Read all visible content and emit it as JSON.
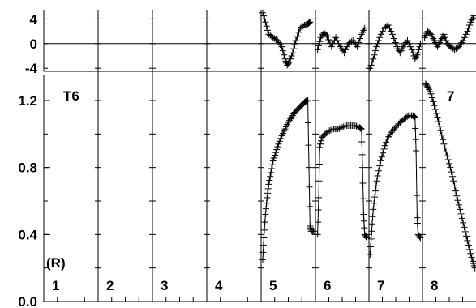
{
  "chart_data": {
    "type": "line",
    "title": "",
    "top_panel": {
      "ylabel": "",
      "ylim": [
        -4.5,
        5.5
      ],
      "y_ticks": [
        4,
        0,
        -4
      ],
      "y_tick_labels": [
        "4",
        "0",
        "-4"
      ],
      "zero_line": true
    },
    "main_panel": {
      "ylabel": "",
      "ylim": [
        0.0,
        1.35
      ],
      "y_ticks": [
        1.2,
        0.8,
        0.4,
        0.0
      ],
      "y_tick_labels": [
        "1.2",
        "0.8",
        "0.4",
        "0.0"
      ],
      "label_top_left": "T6",
      "label_top_right": "7",
      "label_bottom_left": "(R)"
    },
    "subpanel_labels": [
      "1",
      "2",
      "3",
      "4",
      "5",
      "6",
      "7",
      "8"
    ],
    "series": [
      {
        "panel": 5,
        "points": [
          [
            0.03,
            0.25
          ],
          [
            0.05,
            0.38
          ],
          [
            0.08,
            0.52
          ],
          [
            0.11,
            0.62
          ],
          [
            0.14,
            0.7
          ],
          [
            0.18,
            0.77
          ],
          [
            0.22,
            0.84
          ],
          [
            0.27,
            0.89
          ],
          [
            0.32,
            0.94
          ],
          [
            0.38,
            0.99
          ],
          [
            0.44,
            1.03
          ],
          [
            0.5,
            1.07
          ],
          [
            0.56,
            1.1
          ],
          [
            0.62,
            1.13
          ],
          [
            0.68,
            1.15
          ],
          [
            0.74,
            1.17
          ],
          [
            0.8,
            1.19
          ],
          [
            0.84,
            1.2
          ],
          [
            0.86,
            1.2
          ],
          [
            0.88,
            0.8
          ],
          [
            0.9,
            0.45
          ],
          [
            0.92,
            0.42
          ],
          [
            0.97,
            0.42
          ]
        ],
        "residuals": [
          [
            0.03,
            5.0
          ],
          [
            0.08,
            3.5
          ],
          [
            0.14,
            1.5
          ],
          [
            0.22,
            1.0
          ],
          [
            0.3,
            0.5
          ],
          [
            0.38,
            -0.5
          ],
          [
            0.44,
            -2.5
          ],
          [
            0.48,
            -3.5
          ],
          [
            0.52,
            -3.0
          ],
          [
            0.58,
            -1.5
          ],
          [
            0.64,
            0.5
          ],
          [
            0.72,
            2.5
          ],
          [
            0.8,
            3.0
          ],
          [
            0.86,
            3.2
          ],
          [
            0.9,
            3.5
          ]
        ]
      },
      {
        "panel": 6,
        "points": [
          [
            0.04,
            0.4
          ],
          [
            0.06,
            0.62
          ],
          [
            0.08,
            0.92
          ],
          [
            0.12,
            0.98
          ],
          [
            0.18,
            1.0
          ],
          [
            0.26,
            1.02
          ],
          [
            0.34,
            1.03
          ],
          [
            0.42,
            1.03
          ],
          [
            0.5,
            1.04
          ],
          [
            0.58,
            1.05
          ],
          [
            0.66,
            1.05
          ],
          [
            0.74,
            1.05
          ],
          [
            0.82,
            1.04
          ],
          [
            0.86,
            1.03
          ],
          [
            0.88,
            0.8
          ],
          [
            0.9,
            0.52
          ],
          [
            0.92,
            0.4
          ],
          [
            0.96,
            0.38
          ]
        ],
        "residuals": [
          [
            0.04,
            -1.0
          ],
          [
            0.1,
            1.0
          ],
          [
            0.16,
            1.8
          ],
          [
            0.22,
            1.2
          ],
          [
            0.3,
            -0.5
          ],
          [
            0.38,
            1.0
          ],
          [
            0.46,
            -0.5
          ],
          [
            0.54,
            -1.5
          ],
          [
            0.62,
            0.0
          ],
          [
            0.7,
            0.5
          ],
          [
            0.78,
            -0.5
          ],
          [
            0.86,
            1.5
          ],
          [
            0.92,
            2.5
          ]
        ]
      },
      {
        "panel": 7,
        "points": [
          [
            0.02,
            0.28
          ],
          [
            0.05,
            0.42
          ],
          [
            0.08,
            0.55
          ],
          [
            0.12,
            0.66
          ],
          [
            0.16,
            0.75
          ],
          [
            0.22,
            0.84
          ],
          [
            0.28,
            0.91
          ],
          [
            0.34,
            0.97
          ],
          [
            0.42,
            1.01
          ],
          [
            0.5,
            1.04
          ],
          [
            0.58,
            1.07
          ],
          [
            0.66,
            1.09
          ],
          [
            0.74,
            1.11
          ],
          [
            0.82,
            1.11
          ],
          [
            0.86,
            1.1
          ],
          [
            0.88,
            0.9
          ],
          [
            0.9,
            0.5
          ],
          [
            0.92,
            0.4
          ],
          [
            0.96,
            0.38
          ]
        ],
        "residuals": [
          [
            0.02,
            -4.0
          ],
          [
            0.08,
            -2.5
          ],
          [
            0.14,
            -0.5
          ],
          [
            0.2,
            1.0
          ],
          [
            0.28,
            2.5
          ],
          [
            0.36,
            3.0
          ],
          [
            0.44,
            1.5
          ],
          [
            0.52,
            -0.5
          ],
          [
            0.58,
            -1.5
          ],
          [
            0.64,
            -0.5
          ],
          [
            0.72,
            0.5
          ],
          [
            0.8,
            -1.0
          ],
          [
            0.86,
            -2.5
          ],
          [
            0.92,
            -1.5
          ],
          [
            0.96,
            0.0
          ]
        ]
      },
      {
        "panel": 8,
        "points": [
          [
            0.06,
            1.3
          ],
          [
            0.1,
            1.28
          ],
          [
            0.16,
            1.24
          ],
          [
            0.22,
            1.17
          ],
          [
            0.28,
            1.1
          ],
          [
            0.34,
            1.02
          ],
          [
            0.4,
            0.94
          ],
          [
            0.46,
            0.87
          ],
          [
            0.52,
            0.8
          ],
          [
            0.58,
            0.72
          ],
          [
            0.64,
            0.63
          ],
          [
            0.7,
            0.55
          ],
          [
            0.76,
            0.47
          ],
          [
            0.82,
            0.39
          ],
          [
            0.88,
            0.31
          ],
          [
            0.94,
            0.24
          ],
          [
            0.98,
            0.2
          ]
        ],
        "residuals": [
          [
            0.04,
            1.0
          ],
          [
            0.1,
            2.0
          ],
          [
            0.16,
            1.5
          ],
          [
            0.22,
            0.5
          ],
          [
            0.28,
            -0.5
          ],
          [
            0.34,
            0.5
          ],
          [
            0.4,
            1.5
          ],
          [
            0.46,
            0.0
          ],
          [
            0.52,
            -0.5
          ],
          [
            0.6,
            -1.0
          ],
          [
            0.68,
            -0.5
          ],
          [
            0.76,
            0.5
          ],
          [
            0.84,
            2.0
          ],
          [
            0.9,
            3.5
          ],
          [
            0.96,
            4.5
          ]
        ]
      }
    ]
  },
  "colors": {
    "ink": "#000000",
    "grid": "#000000",
    "background": "#ffffff"
  }
}
